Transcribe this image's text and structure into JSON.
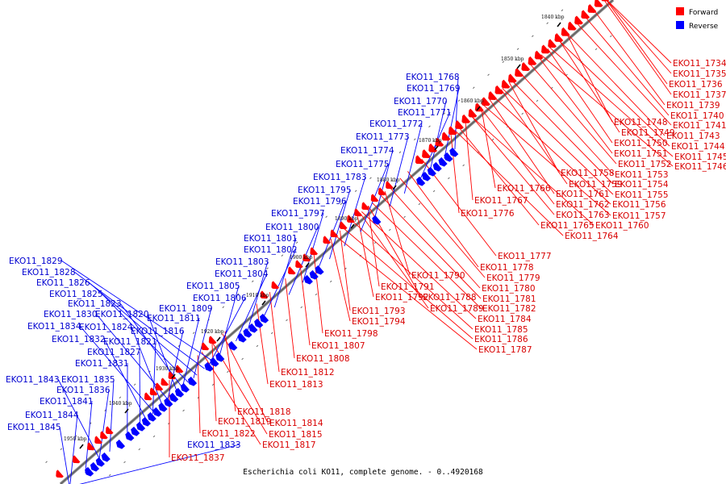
{
  "legend": {
    "items": [
      {
        "label": "Forward",
        "color": "#ff0000"
      },
      {
        "label": "Reverse",
        "color": "#0000ff"
      }
    ]
  },
  "caption": "Escherichia coli KO11, complete genome. - 0..4920168",
  "scale_marks": [
    "1840 kbp",
    "1850 kbp",
    "1860 kbp",
    "1870 kbp",
    "1880 kbp",
    "1890 kbp",
    "1900 kbp",
    "1910 kbp",
    "1920 kbp",
    "1930 kbp",
    "1940 kbp",
    "1950 kbp"
  ],
  "forward_labels": [
    "EKO11_1734",
    "EKO11_1735",
    "EKO11_1736",
    "EKO11_1737",
    "EKO11_1739",
    "EKO11_1740",
    "EKO11_1741",
    "EKO11_1743",
    "EKO11_1744",
    "EKO11_1745",
    "EKO11_1746",
    "EKO11_1748",
    "EKO11_1749",
    "EKO11_1750",
    "EKO11_1751",
    "EKO11_1752",
    "EKO11_1753",
    "EKO11_1754",
    "EKO11_1755",
    "EKO11_1756",
    "EKO11_1757",
    "EKO11_1760",
    "EKO11_1758",
    "EKO11_1759",
    "EKO11_1761",
    "EKO11_1762",
    "EKO11_1763",
    "EKO11_1765",
    "EKO11_1764",
    "EKO11_1766",
    "EKO11_1767",
    "EKO11_1776",
    "EKO11_1777",
    "EKO11_1778",
    "EKO11_1779",
    "EKO11_1780",
    "EKO11_1781",
    "EKO11_1782",
    "EKO11_1784",
    "EKO11_1785",
    "EKO11_1786",
    "EKO11_1787",
    "EKO11_1790",
    "EKO11_1791",
    "EKO11_1792",
    "EKO11_1788",
    "EKO11_1789",
    "EKO11_1793",
    "EKO11_1794",
    "EKO11_1798",
    "EKO11_1807",
    "EKO11_1808",
    "EKO11_1812",
    "EKO11_1813",
    "EKO11_1818",
    "EKO11_1819",
    "EKO11_1814",
    "EKO11_1822",
    "EKO11_1815",
    "EKO11_1817",
    "EKO11_1837"
  ],
  "reverse_labels": [
    "EKO11_1768",
    "EKO11_1769",
    "EKO11_1770",
    "EKO11_1771",
    "EKO11_1772",
    "EKO11_1773",
    "EKO11_1774",
    "EKO11_1775",
    "EKO11_1783",
    "EKO11_1795",
    "EKO11_1796",
    "EKO11_1797",
    "EKO11_1800",
    "EKO11_1801",
    "EKO11_1802",
    "EKO11_1803",
    "EKO11_1804",
    "EKO11_1805",
    "EKO11_1806",
    "EKO11_1809",
    "EKO11_1811",
    "EKO11_1829",
    "EKO11_1828",
    "EKO11_1826",
    "EKO11_1825",
    "EKO11_1823",
    "EKO11_1830",
    "EKO11_1820",
    "EKO11_1834",
    "EKO11_1824",
    "EKO11_1816",
    "EKO11_1832",
    "EKO11_1821",
    "EKO11_1827",
    "EKO11_1831",
    "EKO11_1843",
    "EKO11_1835",
    "EKO11_1836",
    "EKO11_1841",
    "EKO11_1844",
    "EKO11_1845",
    "EKO11_1833"
  ]
}
